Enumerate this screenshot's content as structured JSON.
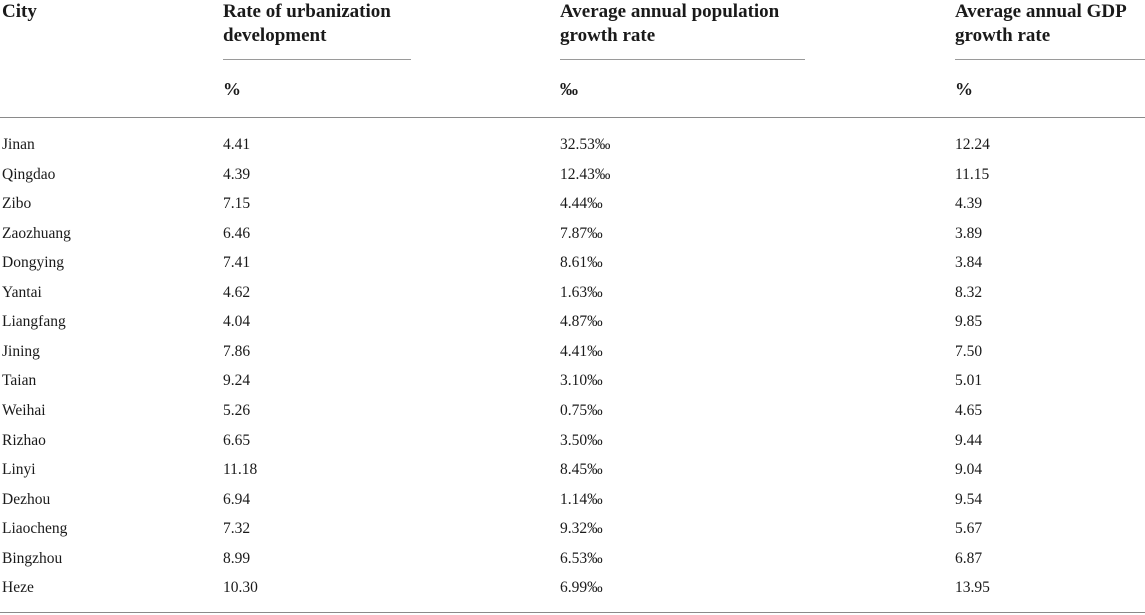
{
  "headers": {
    "city": "City",
    "urban": [
      "Rate of urbanization",
      "development"
    ],
    "pop": [
      "Average annual population",
      "growth rate"
    ],
    "gdp": [
      "Average annual GDP",
      "growth rate"
    ]
  },
  "units": {
    "urban": "%",
    "pop": "‰",
    "gdp": "%"
  },
  "rows": [
    {
      "city": "Jinan",
      "urban": "4.41",
      "pop": "32.53‰",
      "gdp": "12.24"
    },
    {
      "city": "Qingdao",
      "urban": "4.39",
      "pop": "12.43‰",
      "gdp": "11.15"
    },
    {
      "city": "Zibo",
      "urban": "7.15",
      "pop": "4.44‰",
      "gdp": "4.39"
    },
    {
      "city": "Zaozhuang",
      "urban": "6.46",
      "pop": "7.87‰",
      "gdp": "3.89"
    },
    {
      "city": "Dongying",
      "urban": "7.41",
      "pop": "8.61‰",
      "gdp": "3.84"
    },
    {
      "city": "Yantai",
      "urban": "4.62",
      "pop": "1.63‰",
      "gdp": "8.32"
    },
    {
      "city": "Liangfang",
      "urban": "4.04",
      "pop": "4.87‰",
      "gdp": "9.85"
    },
    {
      "city": "Jining",
      "urban": "7.86",
      "pop": "4.41‰",
      "gdp": "7.50"
    },
    {
      "city": "Taian",
      "urban": "9.24",
      "pop": "3.10‰",
      "gdp": "5.01"
    },
    {
      "city": "Weihai",
      "urban": "5.26",
      "pop": "0.75‰",
      "gdp": "4.65"
    },
    {
      "city": "Rizhao",
      "urban": "6.65",
      "pop": "3.50‰",
      "gdp": "9.44"
    },
    {
      "city": "Linyi",
      "urban": "11.18",
      "pop": "8.45‰",
      "gdp": "9.04"
    },
    {
      "city": "Dezhou",
      "urban": "6.94",
      "pop": "1.14‰",
      "gdp": "9.54"
    },
    {
      "city": "Liaocheng",
      "urban": "7.32",
      "pop": "9.32‰",
      "gdp": "5.67"
    },
    {
      "city": "Bingzhou",
      "urban": "8.99",
      "pop": "6.53‰",
      "gdp": "6.87"
    },
    {
      "city": "Heze",
      "urban": "10.30",
      "pop": "6.99‰",
      "gdp": "13.95"
    }
  ]
}
